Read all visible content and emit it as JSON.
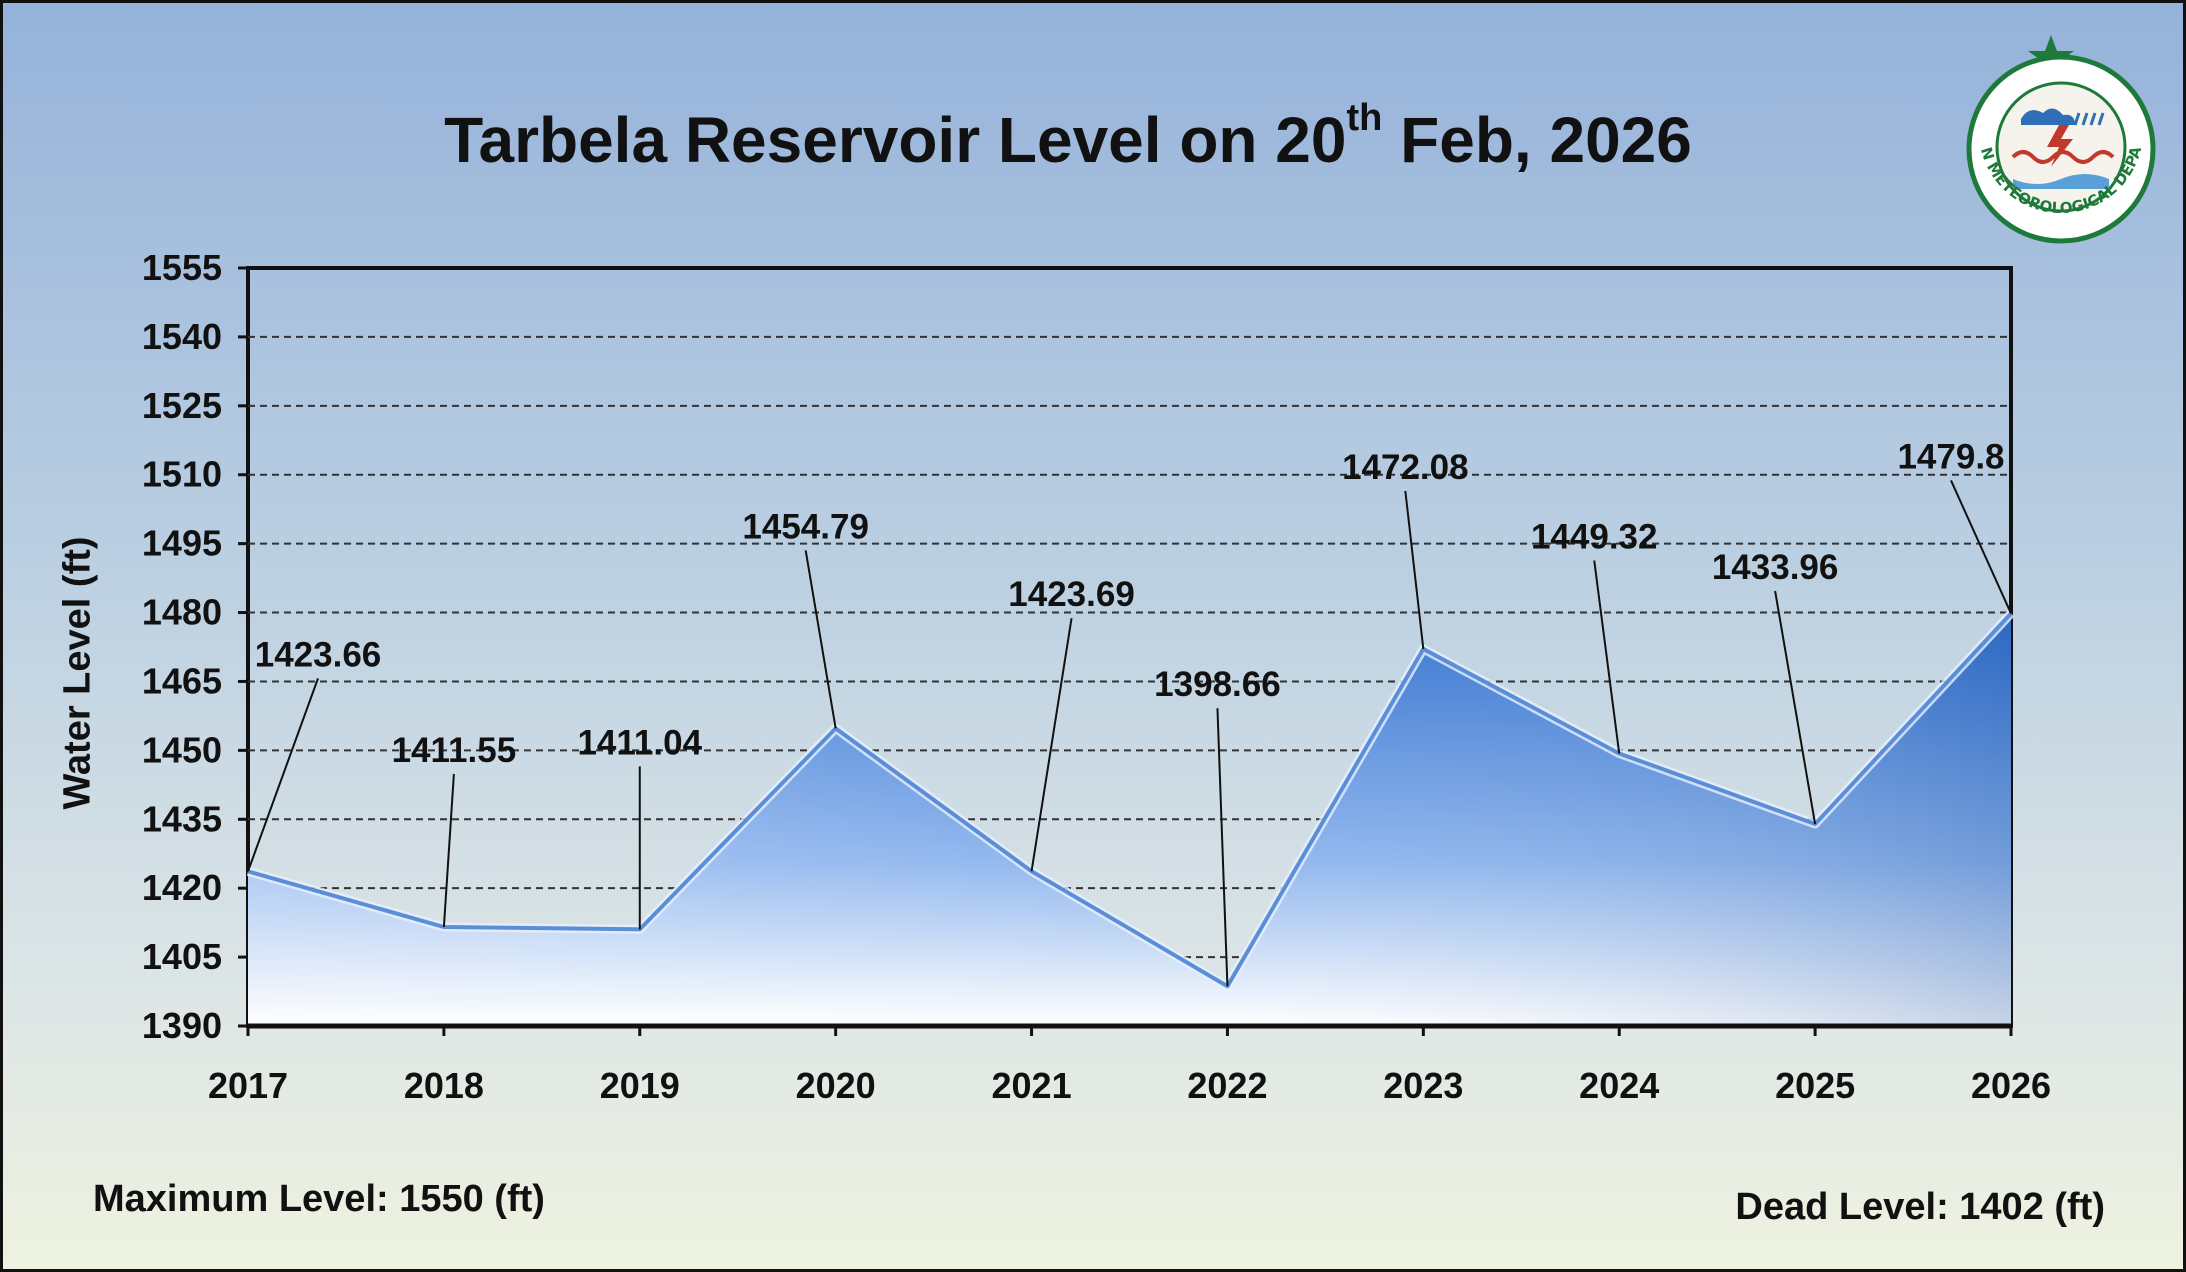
{
  "title": {
    "prefix": "Tarbela Reservoir Level on 20",
    "superscript": "th",
    "suffix": " Feb, 2026"
  },
  "footer": {
    "max_level": "Maximum Level: 1550 (ft)",
    "dead_level": "Dead Level: 1402 (ft)"
  },
  "logo": {
    "arc_text": "PAKISTAN METEOROLOGICAL DEPARTMENT",
    "colors": {
      "star": "#1e7a3a",
      "ring": "#1e7a3a",
      "emblem": "#c0392b"
    }
  },
  "chart_data": {
    "type": "area",
    "title": "Tarbela Reservoir Level on 20th Feb, 2026",
    "xlabel": "",
    "ylabel": "Water Level (ft)",
    "categories": [
      "2017",
      "2018",
      "2019",
      "2020",
      "2021",
      "2022",
      "2023",
      "2024",
      "2025",
      "2026"
    ],
    "values": [
      1423.66,
      1411.55,
      1411.04,
      1454.79,
      1423.69,
      1398.66,
      1472.08,
      1449.32,
      1433.96,
      1479.8
    ],
    "data_labels": [
      "1423.66",
      "1411.55",
      "1411.04",
      "1454.79",
      "1423.69",
      "1398.66",
      "1472.08",
      "1449.32",
      "1433.96",
      "1479.8"
    ],
    "ylim": [
      1390,
      1555
    ],
    "yticks": [
      1390,
      1405,
      1420,
      1435,
      1450,
      1465,
      1480,
      1495,
      1510,
      1525,
      1540,
      1555
    ],
    "grid": true,
    "legend": "none",
    "colors": {
      "fill_top": "#3f7fd6",
      "fill_bottom": "#ffffff",
      "line": "#5a8fd8",
      "grid": "#333333"
    }
  }
}
